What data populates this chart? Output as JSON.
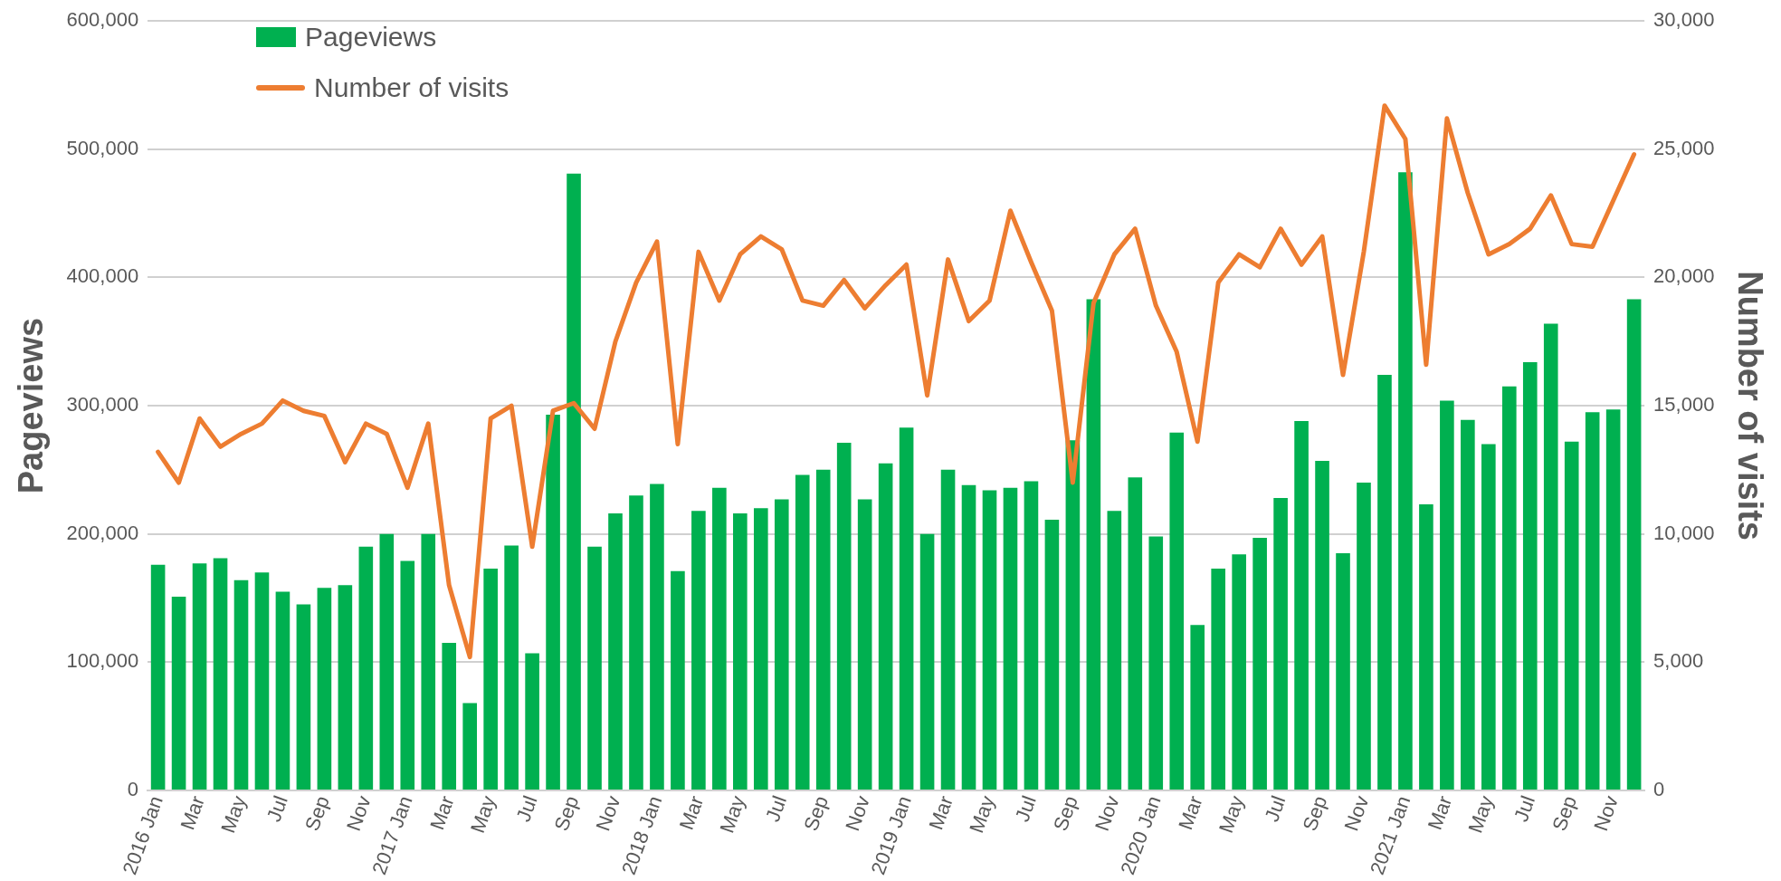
{
  "chart_data": {
    "type": "bar",
    "xlabel": null,
    "ylabel": "Pageviews",
    "y2label": "Number of visits",
    "categories": [
      "2016 Jan",
      null,
      "Mar",
      null,
      "May",
      null,
      "Jul",
      null,
      "Sep",
      null,
      "Nov",
      null,
      "2017 Jan",
      null,
      "Mar",
      null,
      "May",
      null,
      "Jul",
      null,
      "Sep",
      null,
      "Nov",
      null,
      "2018 Jan",
      null,
      "Mar",
      null,
      "May",
      null,
      "Jul",
      null,
      "Sep",
      null,
      "Nov",
      null,
      "2019 Jan",
      null,
      "Mar",
      null,
      "May",
      null,
      "Jul",
      null,
      "Sep",
      null,
      "Nov",
      null,
      "2020 Jan",
      null,
      "Mar",
      null,
      "May",
      null,
      "Jul",
      null,
      "Sep",
      null,
      "Nov",
      null,
      "2021 Jan",
      null,
      "Mar",
      null,
      "May",
      null,
      "Jul",
      null,
      "Sep",
      null,
      "Nov",
      null
    ],
    "series": [
      {
        "name": "Pageviews",
        "color": "#00b050",
        "values": [
          176000,
          151000,
          177000,
          181000,
          164000,
          170000,
          155000,
          145000,
          158000,
          160000,
          190000,
          200000,
          179000,
          200000,
          115000,
          68000,
          173000,
          191000,
          107000,
          293000,
          481000,
          190000,
          216000,
          230000,
          239000,
          171000,
          218000,
          236000,
          216000,
          220000,
          227000,
          246000,
          250000,
          271000,
          227000,
          255000,
          283000,
          200000,
          250000,
          238000,
          234000,
          236000,
          241000,
          211000,
          273000,
          383000,
          218000,
          244000,
          198000,
          279000,
          129000,
          173000,
          184000,
          197000,
          228000,
          288000,
          257000,
          185000,
          240000,
          324000,
          482000,
          223000,
          304000,
          289000,
          270000,
          315000,
          334000,
          364000,
          272000,
          295000,
          297000,
          383000
        ]
      },
      {
        "name": "Number of visits",
        "type": "line",
        "axis": "y2",
        "color": "#ed7d31",
        "marker": "none",
        "line_style": "solid",
        "values": [
          13200,
          12000,
          14500,
          13400,
          13900,
          14300,
          15200,
          14800,
          14600,
          12800,
          14300,
          13900,
          11800,
          14300,
          8000,
          5200,
          14500,
          15000,
          9500,
          14800,
          15100,
          14100,
          17500,
          19800,
          21400,
          13500,
          21000,
          19100,
          20900,
          21600,
          21100,
          19100,
          18900,
          19900,
          18800,
          19700,
          20500,
          15400,
          20700,
          18300,
          19100,
          22600,
          20600,
          18700,
          12000,
          19000,
          20900,
          21900,
          18900,
          17100,
          13600,
          19800,
          20900,
          20400,
          21900,
          20500,
          21600,
          16200,
          21000,
          26700,
          25400,
          16600,
          26200,
          23300,
          20900,
          21300,
          21900,
          23200,
          21300,
          21200,
          23000,
          24800
        ]
      }
    ],
    "ylim": [
      0,
      600000
    ],
    "yticks": [
      0,
      {
        "value": 100000,
        "label": "100,000"
      },
      {
        "value": 200000,
        "label": "200,000"
      },
      {
        "value": 300000,
        "label": "300,000"
      },
      {
        "value": 400000,
        "label": "400,000"
      },
      {
        "value": 500000,
        "label": "500,000"
      },
      {
        "value": 600000,
        "label": "600,000"
      }
    ],
    "y2lim": [
      0,
      30000
    ],
    "y2ticks": [
      0,
      {
        "value": 5000,
        "label": "5,000"
      },
      {
        "value": 10000,
        "label": "10,000"
      },
      {
        "value": 15000,
        "label": "15,000"
      },
      {
        "value": 20000,
        "label": "20,000"
      },
      {
        "value": 25000,
        "label": "25,000"
      },
      {
        "value": 30000,
        "label": "30,000"
      }
    ],
    "grid": "y",
    "legend": "top left"
  }
}
